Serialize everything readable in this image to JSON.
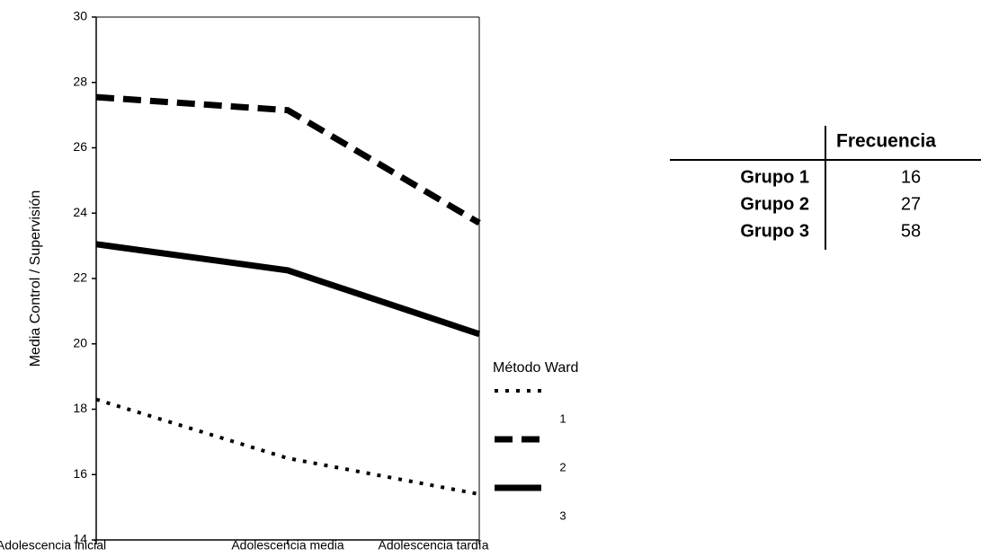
{
  "chart_data": {
    "type": "line",
    "y_label": "Media Control / Supervisión",
    "categories": [
      "Adolescencia inicial",
      "Adolescencia media",
      "Adolescencia tardía"
    ],
    "ylim": [
      14,
      30
    ],
    "yticks": [
      14,
      16,
      18,
      20,
      22,
      24,
      26,
      28,
      30
    ],
    "legend_title": "Método Ward",
    "series": [
      {
        "name": "1",
        "color": "#000000",
        "dash": "dotted",
        "values": [
          18.3,
          16.5,
          15.4
        ]
      },
      {
        "name": "2",
        "color": "#000000",
        "dash": "dashed",
        "values": [
          27.55,
          27.15,
          23.7
        ]
      },
      {
        "name": "3",
        "color": "#000000",
        "dash": "solid",
        "values": [
          23.05,
          22.25,
          20.3
        ]
      }
    ]
  },
  "table": {
    "header": "Frecuencia",
    "rows": [
      [
        "Grupo 1",
        "16"
      ],
      [
        "Grupo 2",
        "27"
      ],
      [
        "Grupo 3",
        "58"
      ]
    ]
  }
}
